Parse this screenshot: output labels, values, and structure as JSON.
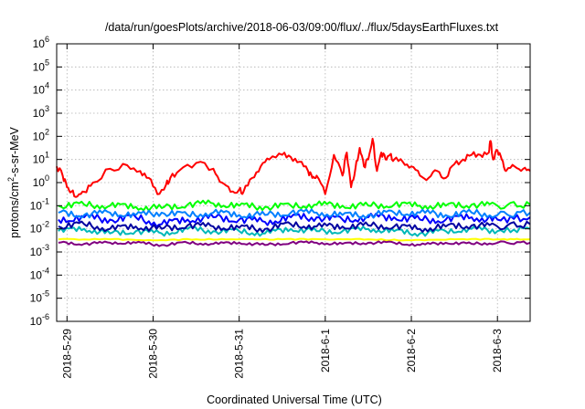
{
  "chart_data": {
    "type": "line",
    "title": "/data/run/goesPlots/archive/2018-06-03/09:00/flux/../flux/5daysEarthFluxes.txt",
    "xlabel": "Coordinated Universal Time (UTC)",
    "ylabel": "protons/cm2-s-sr-MeV",
    "ylabel_parts": {
      "pre": "protons/cm",
      "sup": "2",
      "post": "-s-sr-MeV"
    },
    "yscale": "log",
    "ylim": [
      -6,
      6
    ],
    "y_tick_base": "10",
    "y_tick_exponents": [
      "-6",
      "-5",
      "-4",
      "-3",
      "-2",
      "-1",
      "0",
      "1",
      "2",
      "3",
      "4",
      "5",
      "6"
    ],
    "x_ticks": [
      "2018-5-29",
      "2018-5-30",
      "2018-5-31",
      "2018-6-1",
      "2018-6-2",
      "2018-6-3"
    ],
    "xlim_days": [
      -0.12,
      5.38
    ],
    "grid": true,
    "series": [
      {
        "color": "#ff0000",
        "x": [
          -0.12,
          -0.05,
          0.0,
          0.05,
          0.12,
          0.2,
          0.3,
          0.5,
          0.7,
          0.85,
          0.95,
          1.05,
          1.15,
          1.2,
          1.3,
          1.5,
          1.7,
          1.8,
          1.9,
          2.0,
          2.05,
          2.15,
          2.25,
          2.35,
          2.5,
          2.6,
          2.7,
          2.8,
          2.85,
          2.9,
          3.0,
          3.1,
          3.2,
          3.25,
          3.3,
          3.35,
          3.4,
          3.45,
          3.5,
          3.55,
          3.6,
          3.65,
          3.7,
          3.75,
          3.8,
          3.9,
          4.0,
          4.1,
          4.2,
          4.3,
          4.4,
          4.5,
          4.6,
          4.7,
          4.8,
          4.9,
          4.92,
          4.95,
          5.0,
          5.05,
          5.1,
          5.2,
          5.3,
          5.38
        ],
        "log10_y": [
          0.7,
          0.3,
          -0.2,
          -0.4,
          -0.6,
          -0.4,
          0.0,
          0.6,
          0.75,
          0.5,
          0.2,
          -0.5,
          -0.1,
          0.2,
          0.5,
          0.85,
          0.6,
          0.0,
          -0.4,
          -0.3,
          -0.4,
          0.2,
          0.7,
          1.0,
          1.2,
          1.1,
          0.9,
          0.5,
          0.2,
          0.3,
          -0.5,
          1.2,
          0.3,
          1.3,
          -0.2,
          0.6,
          1.5,
          0.7,
          1.0,
          1.9,
          0.5,
          1.3,
          1.0,
          1.2,
          1.0,
          0.9,
          0.7,
          0.3,
          0.2,
          0.5,
          0.2,
          0.8,
          1.0,
          1.2,
          1.2,
          1.3,
          1.8,
          1.0,
          1.4,
          1.0,
          0.5,
          0.7,
          0.6,
          0.5
        ]
      },
      {
        "color": "#00ff00",
        "x": [
          -0.1,
          0.2,
          0.5,
          0.8,
          1.1,
          1.4,
          1.7,
          2.0,
          2.3,
          2.6,
          2.9,
          3.2,
          3.5,
          3.8,
          4.1,
          4.4,
          4.7,
          5.0,
          5.38
        ],
        "log10_y": [
          -1.0,
          -0.95,
          -1.0,
          -1.05,
          -1.1,
          -0.95,
          -0.9,
          -1.0,
          -1.05,
          -1.0,
          -0.95,
          -1.0,
          -1.0,
          -0.95,
          -1.0,
          -1.0,
          -0.95,
          -1.0,
          -0.95
        ]
      },
      {
        "color": "#0000ff",
        "x": [
          -0.1,
          0.2,
          0.5,
          0.8,
          1.1,
          1.4,
          1.7,
          2.0,
          2.3,
          2.6,
          2.9,
          3.2,
          3.5,
          3.8,
          4.1,
          4.4,
          4.7,
          5.0,
          5.38
        ],
        "log10_y": [
          -1.6,
          -1.5,
          -1.6,
          -1.5,
          -1.8,
          -1.6,
          -1.5,
          -1.6,
          -1.7,
          -1.5,
          -1.5,
          -1.6,
          -1.5,
          -1.5,
          -1.6,
          -1.6,
          -1.5,
          -1.6,
          -1.5
        ]
      },
      {
        "color": "#0080ff",
        "x": [
          -0.1,
          0.2,
          0.5,
          0.8,
          1.1,
          1.4,
          1.7,
          2.0,
          2.3,
          2.6,
          2.9,
          3.2,
          3.5,
          3.8,
          4.1,
          4.4,
          4.7,
          5.0,
          5.38
        ],
        "log10_y": [
          -1.3,
          -1.4,
          -1.3,
          -1.4,
          -1.3,
          -1.4,
          -1.3,
          -1.4,
          -1.4,
          -1.3,
          -1.3,
          -1.4,
          -1.4,
          -1.3,
          -1.3,
          -1.4,
          -1.3,
          -1.4,
          -1.3
        ]
      },
      {
        "color": "#00b8b8",
        "x": [
          -0.1,
          0.2,
          0.5,
          0.8,
          1.1,
          1.4,
          1.7,
          2.0,
          2.3,
          2.6,
          2.9,
          3.2,
          3.5,
          3.8,
          4.1,
          4.4,
          4.7,
          5.0,
          5.38
        ],
        "log10_y": [
          -2.1,
          -2.0,
          -2.2,
          -2.1,
          -2.2,
          -2.0,
          -2.1,
          -2.1,
          -2.2,
          -2.0,
          -2.1,
          -2.1,
          -2.0,
          -2.1,
          -2.2,
          -2.1,
          -2.0,
          -2.1,
          -2.0
        ]
      },
      {
        "color": "#0000a0",
        "x": [
          -0.1,
          0.2,
          0.5,
          0.8,
          1.1,
          1.4,
          1.7,
          2.0,
          2.3,
          2.6,
          2.9,
          3.2,
          3.5,
          3.8,
          4.1,
          4.4,
          4.7,
          5.0,
          5.38
        ],
        "log10_y": [
          -1.9,
          -1.8,
          -2.0,
          -1.9,
          -2.0,
          -1.85,
          -1.9,
          -1.95,
          -2.0,
          -1.8,
          -1.9,
          -1.9,
          -1.85,
          -1.9,
          -2.0,
          -1.9,
          -1.85,
          -1.9,
          -1.8
        ]
      },
      {
        "color": "#ffff00",
        "x": [
          -0.1,
          0.5,
          1.0,
          1.5,
          2.0,
          2.5,
          3.0,
          3.5,
          4.0,
          4.5,
          5.0,
          5.38
        ],
        "log10_y": [
          -2.45,
          -2.45,
          -2.5,
          -2.45,
          -2.45,
          -2.45,
          -2.45,
          -2.45,
          -2.5,
          -2.45,
          -2.45,
          -2.45
        ]
      },
      {
        "color": "#800080",
        "x": [
          -0.1,
          0.2,
          0.5,
          0.8,
          1.1,
          1.4,
          1.7,
          2.0,
          2.3,
          2.6,
          2.9,
          3.2,
          3.5,
          3.8,
          4.1,
          4.4,
          4.7,
          5.0,
          5.38
        ],
        "log10_y": [
          -2.6,
          -2.65,
          -2.6,
          -2.6,
          -2.7,
          -2.6,
          -2.65,
          -2.6,
          -2.7,
          -2.6,
          -2.6,
          -2.65,
          -2.6,
          -2.6,
          -2.7,
          -2.6,
          -2.65,
          -2.6,
          -2.6
        ]
      }
    ]
  }
}
